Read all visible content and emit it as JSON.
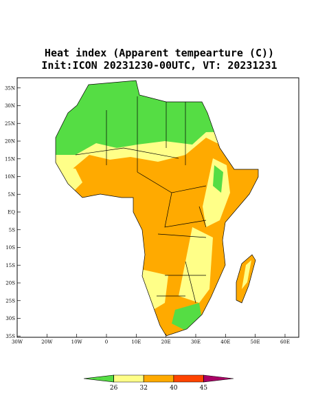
{
  "title": "Heat index (Apparent tempearture (C))",
  "subtitle": "Init:ICON 20231230-00UTC, VT: 20231231",
  "lat_ticks": [
    {
      "value": 35,
      "label": "35N"
    },
    {
      "value": 30,
      "label": "30N"
    },
    {
      "value": 25,
      "label": "25N"
    },
    {
      "value": 20,
      "label": "20N"
    },
    {
      "value": 15,
      "label": "15N"
    },
    {
      "value": 10,
      "label": "10N"
    },
    {
      "value": 5,
      "label": "5N"
    },
    {
      "value": 0,
      "label": "EQ"
    },
    {
      "value": -5,
      "label": "5S"
    },
    {
      "value": -10,
      "label": "10S"
    },
    {
      "value": -15,
      "label": "15S"
    },
    {
      "value": -20,
      "label": "20S"
    },
    {
      "value": -25,
      "label": "25S"
    },
    {
      "value": -30,
      "label": "30S"
    },
    {
      "value": -35,
      "label": "35S"
    }
  ],
  "lon_ticks": [
    {
      "value": -30,
      "label": "30W"
    },
    {
      "value": -20,
      "label": "20W"
    },
    {
      "value": -10,
      "label": "10W"
    },
    0,
    {
      "value": 10,
      "label": "10E"
    },
    {
      "value": 20,
      "label": "20E"
    },
    {
      "value": 30,
      "label": "30E"
    },
    {
      "value": 40,
      "label": "40E"
    },
    {
      "value": 50,
      "label": "50E"
    },
    {
      "value": 60,
      "label": "60E"
    }
  ],
  "colorbar": {
    "ticks": [
      26,
      32,
      40,
      45
    ],
    "colors": [
      "#55dd44",
      "#ffff88",
      "#ffaa00",
      "#ff4400",
      "#aa0066"
    ]
  }
}
